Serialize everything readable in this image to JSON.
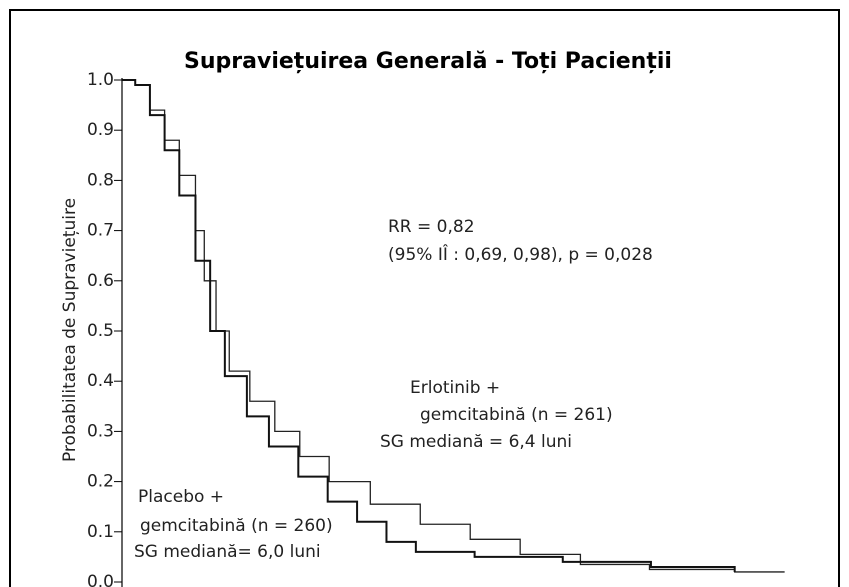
{
  "chart_data": {
    "type": "step",
    "title": "Supraviețuirea Generală - Toți Pacienții",
    "y_label": "Probabilitatea de Supraviețuire",
    "annotations": [
      "RR = 0,82",
      "(95% IÎ : 0,69, 0,98), p = 0,028",
      "Erlotinib  +",
      "gemcitabină (n = 261)",
      "SG mediană = 6,4 luni",
      "Placebo +",
      "gemcitabină (n = 260)",
      "SG mediană= 6,0 luni"
    ],
    "xlim": [
      0,
      48.8
    ],
    "ylim": [
      0,
      1
    ],
    "yticks": [
      {
        "value": 0,
        "label": "0.0"
      },
      0.1,
      0.2,
      0.3,
      0.4,
      0.5,
      0.6,
      0.7,
      0.8,
      0.9,
      {
        "value": 1,
        "label": "1.0"
      }
    ],
    "series": [
      {
        "color": "#222222",
        "width": 1.3,
        "x": [
          0,
          0.9,
          1.9,
          2.9,
          3.9,
          5.0,
          5.6,
          6.4,
          7.3,
          8.7,
          10.4,
          12.1,
          14.1,
          16.9,
          20.3,
          23.7,
          27.1,
          31.2,
          35.9,
          41.7,
          45.1
        ],
        "values": [
          1.0,
          0.99,
          0.94,
          0.88,
          0.81,
          0.7,
          0.6,
          0.5,
          0.42,
          0.36,
          0.3,
          0.25,
          0.2,
          0.155,
          0.115,
          0.085,
          0.055,
          0.035,
          0.025,
          0.02,
          0.02
        ]
      },
      {
        "color": "#111111",
        "width": 2,
        "x": [
          0,
          0.9,
          1.9,
          2.9,
          3.9,
          5.0,
          6.0,
          7.0,
          8.5,
          10.0,
          12.0,
          14.0,
          16.0,
          18.0,
          20.0,
          24.0,
          30.0,
          36.0,
          41.7
        ],
        "values": [
          1.0,
          0.99,
          0.93,
          0.86,
          0.77,
          0.64,
          0.5,
          0.41,
          0.33,
          0.27,
          0.21,
          0.16,
          0.12,
          0.08,
          0.06,
          0.05,
          0.04,
          0.03,
          0.02
        ]
      }
    ]
  }
}
